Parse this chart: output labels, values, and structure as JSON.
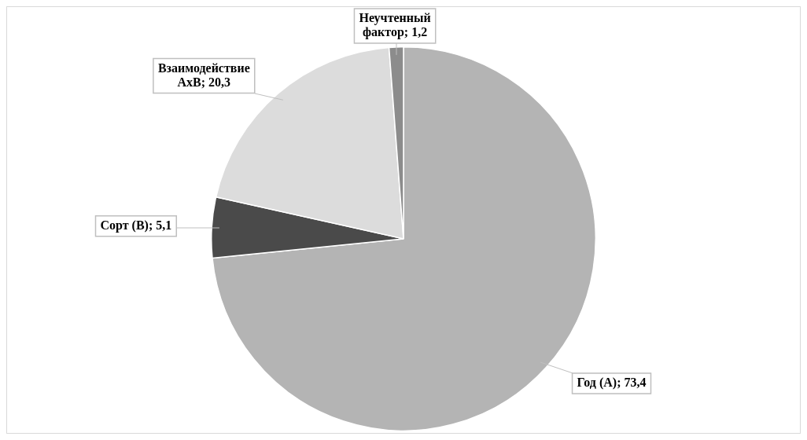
{
  "chart_data": {
    "type": "pie",
    "categories": [
      "Год (А)",
      "Сорт (В)",
      "Взаимодействие АхВ",
      "Неучтенный фактор"
    ],
    "values": [
      73.4,
      5.1,
      20.3,
      1.2
    ],
    "value_labels": [
      "73,4",
      "5,1",
      "20,3",
      "1,2"
    ],
    "colors": [
      "#b4b4b4",
      "#4a4a4a",
      "#dcdcdc",
      "#8c8c8c"
    ],
    "legend": false
  }
}
